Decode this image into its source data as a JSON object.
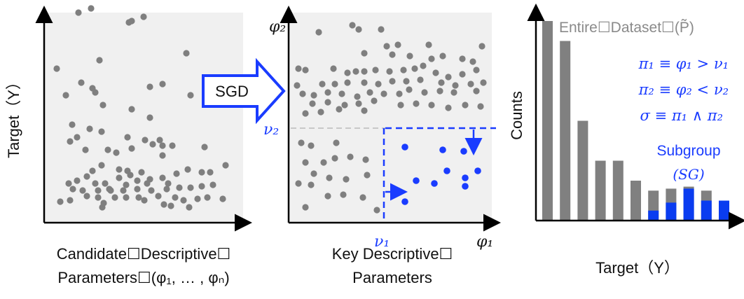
{
  "panel1": {
    "ylabel": "Target（Y）",
    "caption_line1": "Candidate☐Descriptive☐",
    "caption_line2": "Parameters☐(φ₁, … , φₙ)"
  },
  "arrow": {
    "label": "SGD"
  },
  "panel2": {
    "axis_y_label": "φ₂",
    "axis_x_label": "φ₁",
    "threshold_x_label": "ν₁",
    "threshold_y_label": "ν₂",
    "caption_line1": "Key Descriptive☐",
    "caption_line2": "Parameters"
  },
  "panel3": {
    "ylabel": "Counts",
    "xlabel": "Target（Y）",
    "legend_entire": "Entire☐Dataset☐(P̃)",
    "rule1": "π₁ ≡ φ₁ > ν₁",
    "rule2": "π₂ ≡ φ₂ < ν₂",
    "rule3": "σ ≡ π₁ ∧ π₂",
    "subgroup_line1": "Subgroup",
    "subgroup_line2": "(SG)"
  },
  "colors": {
    "gray_points": "#7f7f7f",
    "blue": "#1a3cff",
    "panel_bg": "#f0f0f0",
    "bar_gray": "#808080",
    "bar_blue": "#0a3cf0"
  },
  "chart_data": {
    "type": "bar",
    "series": [
      {
        "name": "Entire Dataset",
        "values": [
          10.0,
          9.0,
          5.0,
          3.0,
          3.0,
          2.0,
          1.5,
          1.6,
          1.7,
          1.5,
          1.0
        ]
      },
      {
        "name": "Subgroup",
        "values": [
          0,
          0,
          0,
          0,
          0,
          0,
          0.5,
          0.9,
          1.6,
          1.0,
          1.0
        ]
      }
    ]
  }
}
